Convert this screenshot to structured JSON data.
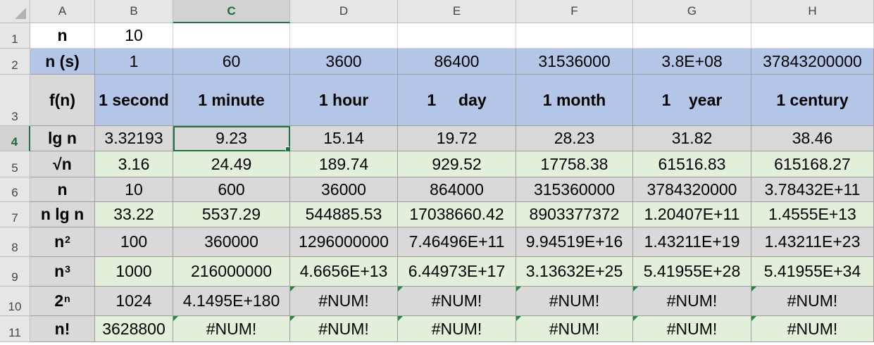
{
  "columns": [
    "A",
    "B",
    "C",
    "D",
    "E",
    "F",
    "G",
    "H"
  ],
  "rows": [
    "1",
    "2",
    "3",
    "4",
    "5",
    "6",
    "7",
    "8",
    "9",
    "10",
    "11"
  ],
  "selected": {
    "column": "C",
    "row": "4"
  },
  "cells": {
    "a1": "n",
    "b1": "10",
    "a2": "n (s)",
    "b2": "1",
    "c2": "60",
    "d2": "3600",
    "e2": "86400",
    "f2": "31536000",
    "g2": "3.8E+08",
    "h2": "37843200000",
    "a3": "f(n)",
    "b3": "1 second",
    "c3": "1 minute",
    "d3": "1 hour",
    "e3": "1     day",
    "f3": "1 month",
    "g3": "1    year",
    "h3": "1 century",
    "a4": "lg n",
    "b4": "3.32193",
    "c4": "9.23",
    "d4": "15.14",
    "e4": "19.72",
    "f4": "28.23",
    "g4": "31.82",
    "h4": "38.46",
    "a5": "√n",
    "b5": "3.16",
    "c5": "24.49",
    "d5": "189.74",
    "e5": "929.52",
    "f5": "17758.38",
    "g5": "61516.83",
    "h5": "615168.27",
    "a6": "n",
    "b6": "10",
    "c6": "600",
    "d6": "36000",
    "e6": "864000",
    "f6": "315360000",
    "g6": "3784320000",
    "h6": "3.78432E+11",
    "a7": "n lg n",
    "b7": "33.22",
    "c7": "5537.29",
    "d7": "544885.53",
    "e7": "17038660.42",
    "f7": "8903377372",
    "g7": "1.20407E+11",
    "h7": "1.4555E+13",
    "a8_base": "n",
    "a8_exp": "2",
    "b8": "100",
    "c8": "360000",
    "d8": "1296000000",
    "e8": "7.46496E+11",
    "f8": "9.94519E+16",
    "g8": "1.43211E+19",
    "h8": "1.43211E+23",
    "a9_base": "n",
    "a9_exp": "3",
    "b9": "1000",
    "c9": "216000000",
    "d9": "4.6656E+13",
    "e9": "6.44973E+17",
    "f9": "3.13632E+25",
    "g9": "5.41955E+28",
    "h9": "5.41955E+34",
    "a10_base": "2",
    "a10_exp": "n",
    "b10": "1024",
    "c10": "4.1495E+180",
    "d10": "#NUM!",
    "e10": "#NUM!",
    "f10": "#NUM!",
    "g10": "#NUM!",
    "h10": "#NUM!",
    "a11": "n!",
    "b11": "3628800",
    "c11": "#NUM!",
    "d11": "#NUM!",
    "e11": "#NUM!",
    "f11": "#NUM!",
    "g11": "#NUM!",
    "h11": "#NUM!"
  },
  "colors": {
    "header_blue": "#b4c6e7",
    "label_grey": "#d9d9d9",
    "row_green": "#e2efda",
    "selection": "#217346"
  }
}
